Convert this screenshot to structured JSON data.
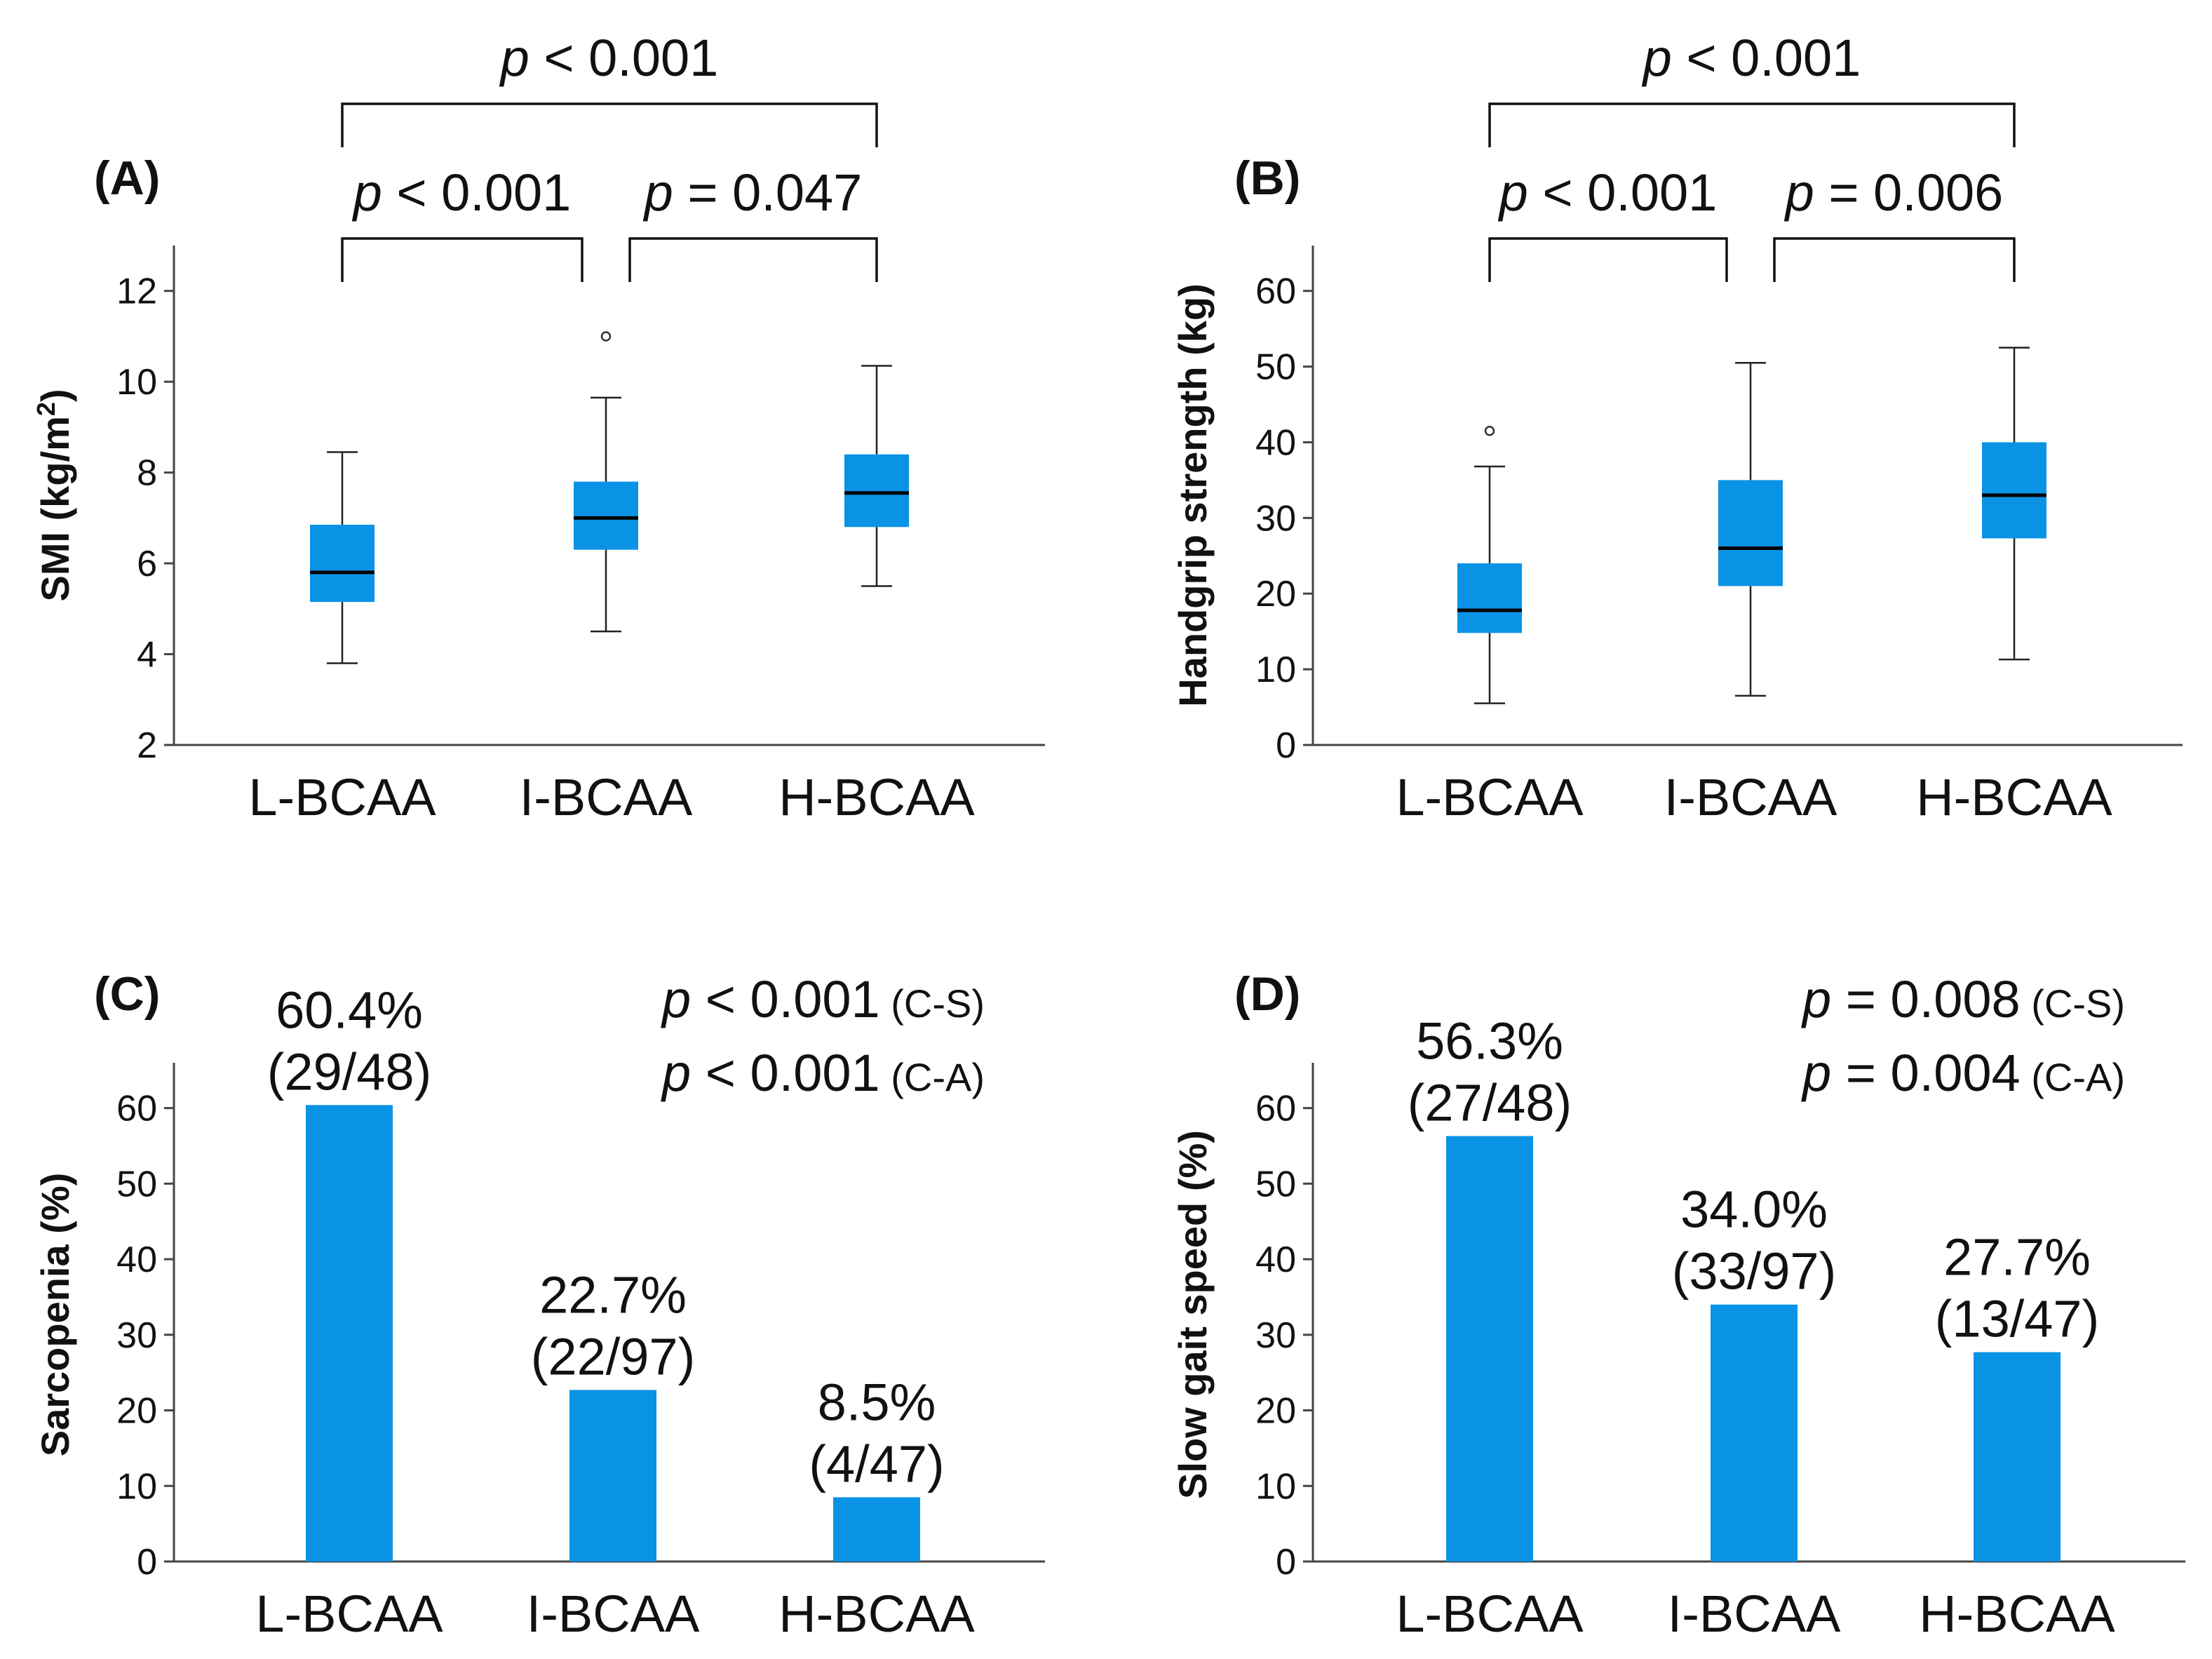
{
  "colors": {
    "fill": "#0A93E5"
  },
  "chart_data": [
    {
      "panel": "(A)",
      "type": "box",
      "ylabel": "SMI (kg/m²)",
      "ylabel_main": "SMI (kg/m",
      "ylabel_sup": "2",
      "ylabel_tail": ")",
      "ylim": [
        2,
        13
      ],
      "yticks": [
        2,
        4,
        6,
        8,
        10,
        12
      ],
      "categories": [
        "L-BCAA",
        "I-BCAA",
        "H-BCAA"
      ],
      "boxes": [
        {
          "min": 3.8,
          "q1": 5.15,
          "median": 5.8,
          "q3": 6.85,
          "max": 8.45,
          "outliers": []
        },
        {
          "min": 4.5,
          "q1": 6.3,
          "median": 7.0,
          "q3": 7.8,
          "max": 9.65,
          "outliers": [
            11.0
          ]
        },
        {
          "min": 5.5,
          "q1": 6.8,
          "median": 7.55,
          "q3": 8.4,
          "max": 10.35,
          "outliers": []
        }
      ],
      "brackets": [
        {
          "from": 0,
          "to": 2,
          "level": 1,
          "p_symbol": "p",
          "p_rest": " < 0.001"
        },
        {
          "from": 0,
          "to": 1,
          "level": 0,
          "p_symbol": "p",
          "p_rest": " < 0.001"
        },
        {
          "from": 1,
          "to": 2,
          "level": 0,
          "p_symbol": "p",
          "p_rest": " = 0.047"
        }
      ]
    },
    {
      "panel": "(B)",
      "type": "box",
      "ylabel": "Handgrip strength (kg)",
      "ylim": [
        0,
        66
      ],
      "yticks": [
        0,
        10,
        20,
        30,
        40,
        50,
        60
      ],
      "categories": [
        "L-BCAA",
        "I-BCAA",
        "H-BCAA"
      ],
      "boxes": [
        {
          "min": 5.5,
          "q1": 14.8,
          "median": 17.8,
          "q3": 24.0,
          "max": 36.8,
          "outliers": [
            41.5
          ]
        },
        {
          "min": 6.5,
          "q1": 21.0,
          "median": 26.0,
          "q3": 35.0,
          "max": 50.5,
          "outliers": []
        },
        {
          "min": 11.3,
          "q1": 27.3,
          "median": 33.0,
          "q3": 40.0,
          "max": 52.5,
          "outliers": []
        }
      ],
      "brackets": [
        {
          "from": 0,
          "to": 2,
          "level": 1,
          "p_symbol": "p",
          "p_rest": " < 0.001"
        },
        {
          "from": 0,
          "to": 1,
          "level": 0,
          "p_symbol": "p",
          "p_rest": " < 0.001"
        },
        {
          "from": 1,
          "to": 2,
          "level": 0,
          "p_symbol": "p",
          "p_rest": " = 0.006"
        }
      ]
    },
    {
      "panel": "(C)",
      "type": "bar",
      "ylabel": "Sarcopenia (%)",
      "ylim": [
        0,
        66
      ],
      "yticks": [
        0,
        10,
        20,
        30,
        40,
        50,
        60
      ],
      "categories": [
        "L-BCAA",
        "I-BCAA",
        "H-BCAA"
      ],
      "values": [
        60.4,
        22.7,
        8.5
      ],
      "value_labels": [
        "60.4%",
        "22.7%",
        "8.5%"
      ],
      "count_labels": [
        "(29/48)",
        "(22/97)",
        "(4/47)"
      ],
      "tests": [
        {
          "p_symbol": "p",
          "p_rest": " < 0.001",
          "test": " (C-S)"
        },
        {
          "p_symbol": "p",
          "p_rest": " < 0.001",
          "test": " (C-A)"
        }
      ]
    },
    {
      "panel": "(D)",
      "type": "bar",
      "ylabel": "Slow gait speed (%)",
      "ylim": [
        0,
        66
      ],
      "yticks": [
        0,
        10,
        20,
        30,
        40,
        50,
        60
      ],
      "categories": [
        "L-BCAA",
        "I-BCAA",
        "H-BCAA"
      ],
      "values": [
        56.3,
        34.0,
        27.7
      ],
      "value_labels": [
        "56.3%",
        "34.0%",
        "27.7%"
      ],
      "count_labels": [
        "(27/48)",
        "(33/97)",
        "(13/47)"
      ],
      "tests": [
        {
          "p_symbol": "p",
          "p_rest": " = 0.008",
          "test": " (C-S)"
        },
        {
          "p_symbol": "p",
          "p_rest": " = 0.004",
          "test": " (C-A)"
        }
      ]
    }
  ]
}
